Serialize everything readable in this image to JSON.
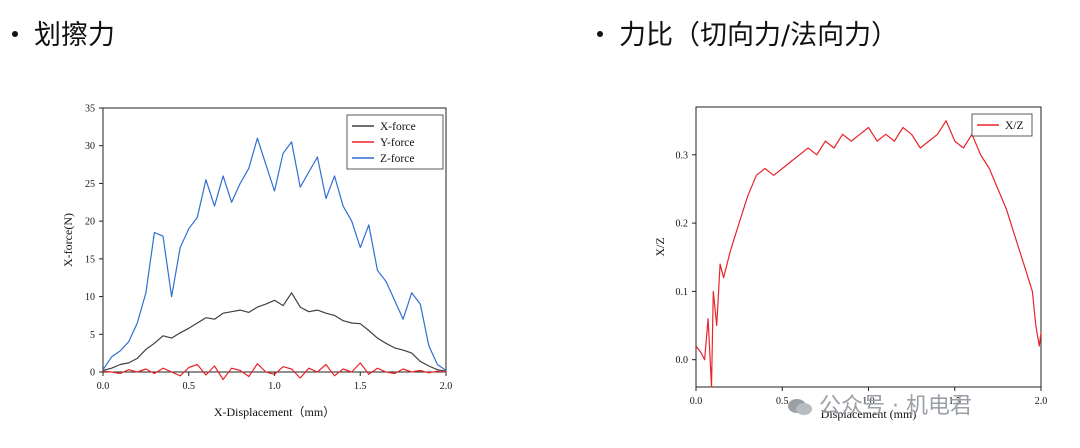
{
  "titles": {
    "left": "划擦力",
    "right": "力比（切向力/法向力）"
  },
  "watermark": {
    "text": "公众号 · 机电君"
  },
  "chart_data": [
    {
      "type": "line",
      "title": "",
      "xlabel": "X-Displacement（mm）",
      "ylabel": "X-force(N)",
      "xlim": [
        0.0,
        2.0
      ],
      "ylim": [
        0,
        35
      ],
      "xticks": [
        0.0,
        0.5,
        1.0,
        1.5,
        2.0
      ],
      "yticks": [
        0,
        5,
        10,
        15,
        20,
        25,
        30,
        35
      ],
      "legend": "top-right",
      "series": [
        {
          "name": "X-force",
          "color": "#404040",
          "x": [
            0,
            0.05,
            0.1,
            0.15,
            0.2,
            0.25,
            0.3,
            0.35,
            0.4,
            0.45,
            0.5,
            0.55,
            0.6,
            0.65,
            0.7,
            0.75,
            0.8,
            0.85,
            0.9,
            0.95,
            1.0,
            1.05,
            1.1,
            1.15,
            1.2,
            1.25,
            1.3,
            1.35,
            1.4,
            1.45,
            1.5,
            1.55,
            1.6,
            1.65,
            1.7,
            1.75,
            1.8,
            1.85,
            1.9,
            1.95,
            2.0
          ],
          "values": [
            0.2,
            0.5,
            1.0,
            1.2,
            1.8,
            3.0,
            3.8,
            4.8,
            4.5,
            5.2,
            5.8,
            6.5,
            7.2,
            7.0,
            7.8,
            8.0,
            8.2,
            7.9,
            8.6,
            9.0,
            9.5,
            8.8,
            10.5,
            8.6,
            8.0,
            8.2,
            7.8,
            7.5,
            6.8,
            6.5,
            6.4,
            5.5,
            4.5,
            3.8,
            3.2,
            2.9,
            2.5,
            1.4,
            0.8,
            0.3,
            0.1
          ]
        },
        {
          "name": "Y-force",
          "color": "#e8242a",
          "x": [
            0,
            0.05,
            0.1,
            0.15,
            0.2,
            0.25,
            0.3,
            0.35,
            0.4,
            0.45,
            0.5,
            0.55,
            0.6,
            0.65,
            0.7,
            0.75,
            0.8,
            0.85,
            0.9,
            0.95,
            1.0,
            1.05,
            1.1,
            1.15,
            1.2,
            1.25,
            1.3,
            1.35,
            1.4,
            1.45,
            1.5,
            1.55,
            1.6,
            1.65,
            1.7,
            1.75,
            1.8,
            1.85,
            1.9,
            1.95,
            2.0
          ],
          "values": [
            0.1,
            0.0,
            -0.2,
            0.3,
            0.0,
            0.4,
            -0.2,
            0.5,
            0.0,
            -0.5,
            0.6,
            1.0,
            -0.4,
            0.8,
            -1.0,
            0.5,
            0.2,
            -0.6,
            1.1,
            0.0,
            -0.3,
            0.7,
            0.4,
            -0.8,
            0.5,
            0.0,
            1.0,
            -0.5,
            0.4,
            0.0,
            1.2,
            -0.3,
            0.5,
            0.0,
            -0.2,
            0.4,
            0.0,
            0.2,
            -0.1,
            0.1,
            0.0
          ]
        },
        {
          "name": "Z-force",
          "color": "#2f6fd3",
          "x": [
            0,
            0.05,
            0.1,
            0.15,
            0.2,
            0.25,
            0.3,
            0.35,
            0.4,
            0.45,
            0.5,
            0.55,
            0.6,
            0.65,
            0.7,
            0.75,
            0.8,
            0.85,
            0.9,
            0.95,
            1.0,
            1.05,
            1.1,
            1.15,
            1.2,
            1.25,
            1.3,
            1.35,
            1.4,
            1.45,
            1.5,
            1.55,
            1.6,
            1.65,
            1.7,
            1.75,
            1.8,
            1.85,
            1.9,
            1.95,
            2.0
          ],
          "values": [
            0.3,
            2.0,
            2.8,
            4.0,
            6.5,
            10.5,
            18.5,
            18.0,
            10.0,
            16.5,
            19.0,
            20.5,
            25.5,
            22.0,
            26.0,
            22.5,
            25.0,
            27.0,
            31.0,
            27.5,
            24.0,
            29.0,
            30.5,
            24.5,
            26.5,
            28.5,
            23.0,
            26.0,
            22.0,
            20.0,
            16.5,
            19.5,
            13.5,
            12.0,
            9.5,
            7.0,
            10.5,
            9.0,
            3.5,
            1.0,
            0.2
          ]
        }
      ]
    },
    {
      "type": "line",
      "title": "",
      "xlabel": "Displacement (mm)",
      "ylabel": "X/Z",
      "xlim": [
        0.0,
        2.0
      ],
      "ylim": [
        -0.04,
        0.37
      ],
      "xticks": [
        0.0,
        0.5,
        1.0,
        1.5,
        2.0
      ],
      "yticks": [
        0.0,
        0.1,
        0.2,
        0.3
      ],
      "legend": "top-right",
      "series": [
        {
          "name": "X/Z",
          "color": "#e8242a",
          "x": [
            0,
            0.03,
            0.05,
            0.07,
            0.09,
            0.1,
            0.12,
            0.14,
            0.16,
            0.2,
            0.25,
            0.3,
            0.35,
            0.4,
            0.45,
            0.5,
            0.55,
            0.6,
            0.65,
            0.7,
            0.75,
            0.8,
            0.85,
            0.9,
            0.95,
            1.0,
            1.05,
            1.1,
            1.15,
            1.2,
            1.25,
            1.3,
            1.35,
            1.4,
            1.45,
            1.5,
            1.55,
            1.6,
            1.65,
            1.7,
            1.75,
            1.8,
            1.85,
            1.9,
            1.95,
            1.97,
            1.99,
            2.0
          ],
          "values": [
            0.02,
            0.01,
            0.0,
            0.06,
            -0.04,
            0.1,
            0.05,
            0.14,
            0.12,
            0.16,
            0.2,
            0.24,
            0.27,
            0.28,
            0.27,
            0.28,
            0.29,
            0.3,
            0.31,
            0.3,
            0.32,
            0.31,
            0.33,
            0.32,
            0.33,
            0.34,
            0.32,
            0.33,
            0.32,
            0.34,
            0.33,
            0.31,
            0.32,
            0.33,
            0.35,
            0.32,
            0.31,
            0.33,
            0.3,
            0.28,
            0.25,
            0.22,
            0.18,
            0.14,
            0.1,
            0.05,
            0.02,
            0.04
          ]
        }
      ]
    }
  ]
}
